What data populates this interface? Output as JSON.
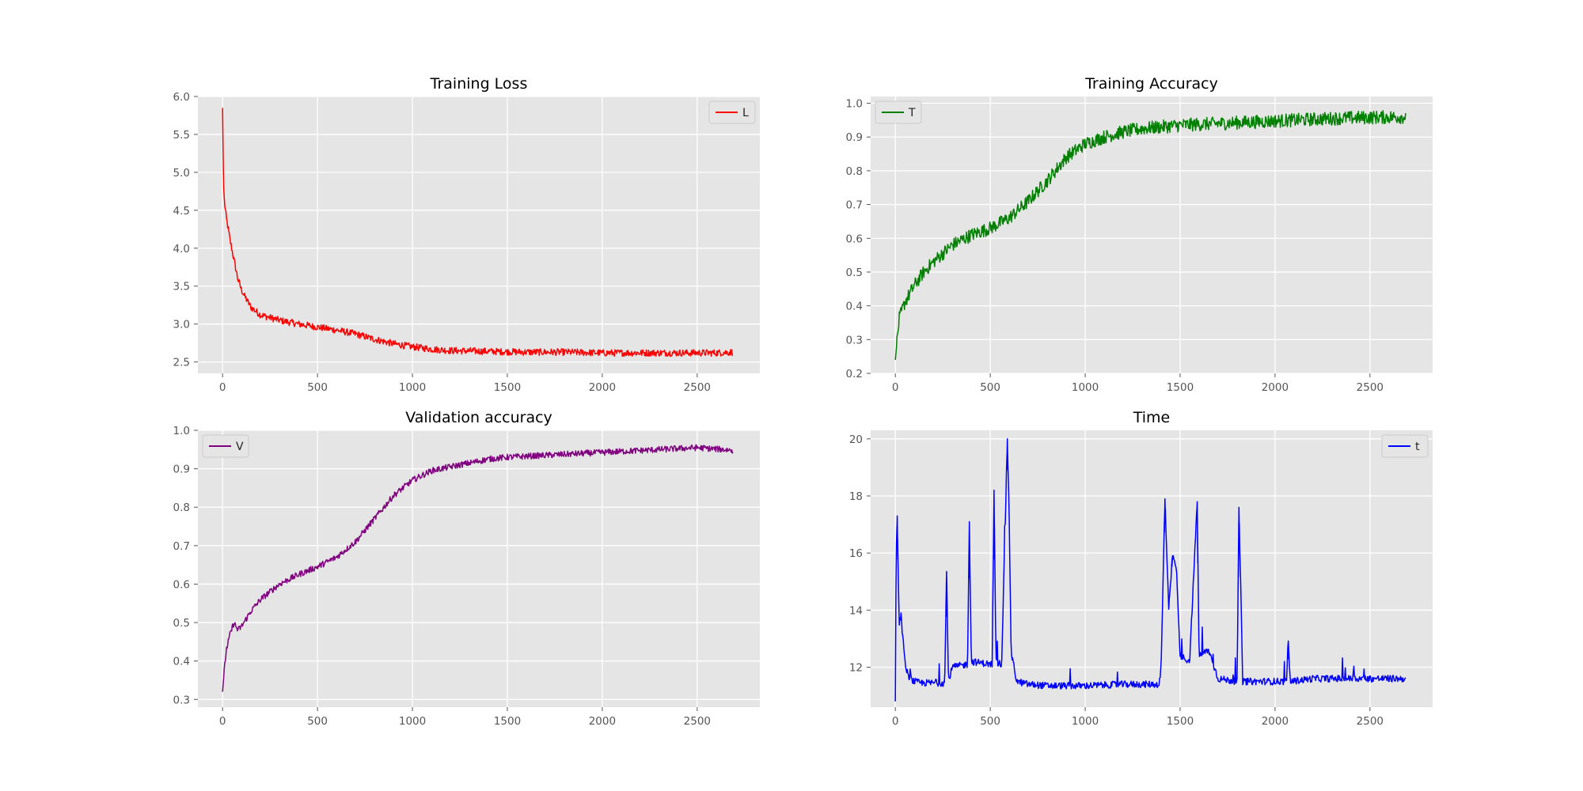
{
  "chart_data": [
    {
      "type": "line",
      "title": "Training Loss",
      "xlim": [
        -130,
        2830
      ],
      "ylim": [
        2.35,
        6.0
      ],
      "xticks": [
        0,
        500,
        1000,
        1500,
        2000,
        2500
      ],
      "yticks": [
        2.5,
        3.0,
        3.5,
        4.0,
        4.5,
        5.0,
        5.5,
        6.0
      ],
      "ytick_decimals": 1,
      "grid": true,
      "legend": "top-right",
      "series": [
        {
          "name": "L",
          "color": "#ff0000",
          "noise": 0.045,
          "points": [
            [
              0,
              5.85
            ],
            [
              5,
              4.85
            ],
            [
              10,
              4.6
            ],
            [
              20,
              4.4
            ],
            [
              40,
              4.1
            ],
            [
              60,
              3.85
            ],
            [
              80,
              3.6
            ],
            [
              100,
              3.45
            ],
            [
              120,
              3.35
            ],
            [
              150,
              3.22
            ],
            [
              200,
              3.12
            ],
            [
              300,
              3.05
            ],
            [
              400,
              3.0
            ],
            [
              500,
              2.96
            ],
            [
              600,
              2.92
            ],
            [
              700,
              2.87
            ],
            [
              800,
              2.8
            ],
            [
              900,
              2.74
            ],
            [
              1000,
              2.7
            ],
            [
              1100,
              2.67
            ],
            [
              1200,
              2.65
            ],
            [
              1400,
              2.64
            ],
            [
              1600,
              2.63
            ],
            [
              1800,
              2.63
            ],
            [
              2000,
              2.62
            ],
            [
              2200,
              2.62
            ],
            [
              2400,
              2.62
            ],
            [
              2600,
              2.62
            ],
            [
              2690,
              2.63
            ]
          ]
        }
      ]
    },
    {
      "type": "line",
      "title": "Training Accuracy",
      "xlim": [
        -130,
        2830
      ],
      "ylim": [
        0.2,
        1.02
      ],
      "xticks": [
        0,
        500,
        1000,
        1500,
        2000,
        2500
      ],
      "yticks": [
        0.2,
        0.3,
        0.4,
        0.5,
        0.6,
        0.7,
        0.8,
        0.9,
        1.0
      ],
      "ytick_decimals": 1,
      "grid": true,
      "legend": "top-left",
      "series": [
        {
          "name": "T",
          "color": "#008000",
          "noise": 0.02,
          "points": [
            [
              0,
              0.24
            ],
            [
              10,
              0.3
            ],
            [
              20,
              0.36
            ],
            [
              50,
              0.41
            ],
            [
              80,
              0.44
            ],
            [
              100,
              0.46
            ],
            [
              150,
              0.5
            ],
            [
              200,
              0.53
            ],
            [
              300,
              0.58
            ],
            [
              400,
              0.61
            ],
            [
              500,
              0.63
            ],
            [
              600,
              0.66
            ],
            [
              700,
              0.71
            ],
            [
              800,
              0.77
            ],
            [
              900,
              0.84
            ],
            [
              1000,
              0.88
            ],
            [
              1100,
              0.9
            ],
            [
              1200,
              0.915
            ],
            [
              1300,
              0.925
            ],
            [
              1400,
              0.93
            ],
            [
              1500,
              0.935
            ],
            [
              1700,
              0.94
            ],
            [
              1900,
              0.945
            ],
            [
              2100,
              0.95
            ],
            [
              2300,
              0.955
            ],
            [
              2500,
              0.958
            ],
            [
              2690,
              0.96
            ]
          ]
        }
      ]
    },
    {
      "type": "line",
      "title": "Validation accuracy",
      "xlim": [
        -130,
        2830
      ],
      "ylim": [
        0.28,
        1.0
      ],
      "xticks": [
        0,
        500,
        1000,
        1500,
        2000,
        2500
      ],
      "yticks": [
        0.3,
        0.4,
        0.5,
        0.6,
        0.7,
        0.8,
        0.9,
        1.0
      ],
      "ytick_decimals": 1,
      "grid": true,
      "legend": "top-left",
      "series": [
        {
          "name": "V",
          "color": "#800080",
          "noise": 0.008,
          "points": [
            [
              0,
              0.32
            ],
            [
              10,
              0.38
            ],
            [
              20,
              0.43
            ],
            [
              40,
              0.47
            ],
            [
              60,
              0.5
            ],
            [
              80,
              0.48
            ],
            [
              100,
              0.49
            ],
            [
              150,
              0.53
            ],
            [
              200,
              0.56
            ],
            [
              300,
              0.6
            ],
            [
              400,
              0.625
            ],
            [
              500,
              0.645
            ],
            [
              600,
              0.67
            ],
            [
              700,
              0.71
            ],
            [
              800,
              0.77
            ],
            [
              900,
              0.83
            ],
            [
              1000,
              0.87
            ],
            [
              1100,
              0.895
            ],
            [
              1200,
              0.905
            ],
            [
              1300,
              0.915
            ],
            [
              1400,
              0.925
            ],
            [
              1500,
              0.93
            ],
            [
              1700,
              0.935
            ],
            [
              1900,
              0.94
            ],
            [
              2100,
              0.945
            ],
            [
              2300,
              0.95
            ],
            [
              2500,
              0.955
            ],
            [
              2690,
              0.948
            ]
          ]
        }
      ]
    },
    {
      "type": "line",
      "title": "Time",
      "xlim": [
        -130,
        2830
      ],
      "ylim": [
        10.6,
        20.3
      ],
      "xticks": [
        0,
        500,
        1000,
        1500,
        2000,
        2500
      ],
      "yticks": [
        12,
        14,
        16,
        18,
        20
      ],
      "ytick_decimals": 0,
      "grid": true,
      "legend": "top-right",
      "series": [
        {
          "name": "t",
          "color": "#0000ff",
          "noise": 0.12,
          "points": [
            [
              0,
              10.8
            ],
            [
              4,
              15.8
            ],
            [
              10,
              17.3
            ],
            [
              20,
              13.5
            ],
            [
              30,
              13.8
            ],
            [
              50,
              12.2
            ],
            [
              70,
              11.6
            ],
            [
              100,
              11.5
            ],
            [
              130,
              11.45
            ],
            [
              200,
              11.45
            ],
            [
              260,
              11.45
            ],
            [
              270,
              15.3
            ],
            [
              280,
              11.5
            ],
            [
              300,
              12.0
            ],
            [
              380,
              12.1
            ],
            [
              390,
              17.1
            ],
            [
              400,
              12.2
            ],
            [
              450,
              12.15
            ],
            [
              510,
              12.1
            ],
            [
              520,
              18.2
            ],
            [
              530,
              12.2
            ],
            [
              560,
              12.1
            ],
            [
              590,
              20.0
            ],
            [
              600,
              17.2
            ],
            [
              610,
              12.5
            ],
            [
              640,
              11.5
            ],
            [
              700,
              11.4
            ],
            [
              800,
              11.35
            ],
            [
              1000,
              11.35
            ],
            [
              1200,
              11.4
            ],
            [
              1390,
              11.4
            ],
            [
              1400,
              12.0
            ],
            [
              1420,
              17.9
            ],
            [
              1440,
              14.0
            ],
            [
              1460,
              15.9
            ],
            [
              1480,
              15.5
            ],
            [
              1500,
              12.4
            ],
            [
              1550,
              12.2
            ],
            [
              1590,
              17.8
            ],
            [
              1600,
              12.4
            ],
            [
              1650,
              12.6
            ],
            [
              1700,
              11.6
            ],
            [
              1800,
              11.5
            ],
            [
              1810,
              17.6
            ],
            [
              1830,
              11.5
            ],
            [
              2000,
              11.5
            ],
            [
              2060,
              11.5
            ],
            [
              2070,
              12.8
            ],
            [
              2080,
              11.5
            ],
            [
              2200,
              11.6
            ],
            [
              2400,
              11.6
            ],
            [
              2600,
              11.6
            ],
            [
              2690,
              11.6
            ]
          ],
          "spikes": [
            [
              270,
              15.3
            ],
            [
              390,
              17.1
            ],
            [
              520,
              18.2
            ],
            [
              590,
              20.0
            ],
            [
              1420,
              17.9
            ],
            [
              1590,
              17.8
            ],
            [
              1810,
              17.6
            ],
            [
              10,
              17.3
            ],
            [
              2070,
              12.8
            ],
            [
              1460,
              15.9
            ]
          ]
        }
      ]
    }
  ]
}
